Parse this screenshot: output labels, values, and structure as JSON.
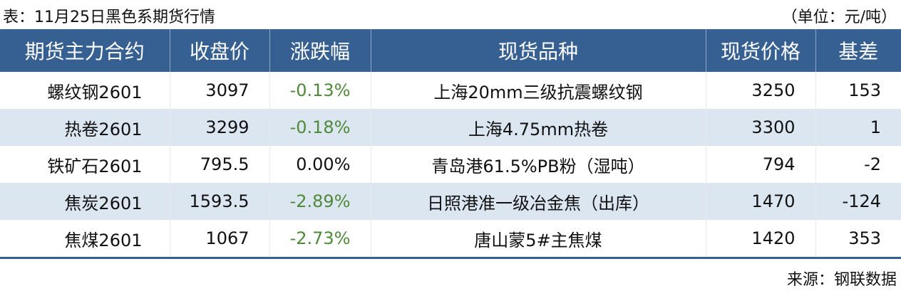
{
  "title": "表：11月25日黑色系期货行情",
  "unit": "（单位：元/吨）",
  "headers": [
    "期货主力合约",
    "收盘价",
    "涨跌幅",
    "现货品种",
    "现货价格",
    "基差"
  ],
  "rows": [
    {
      "contract": "螺纹钢2601",
      "close": "3097",
      "change": "-0.13%",
      "spot": "上海20mm三级抗震螺纹钢",
      "spot_price": "3250",
      "basis": "153"
    },
    {
      "contract": "热卷2601",
      "close": "3299",
      "change": "-0.18%",
      "spot": "上海4.75mm热卷",
      "spot_price": "3300",
      "basis": "1"
    },
    {
      "contract": "铁矿石2601",
      "close": "795.5",
      "change": "0.00%",
      "spot": "青岛港61.5%PB粉（湿吨）",
      "spot_price": "794",
      "basis": "-2"
    },
    {
      "contract": "焦炭2601",
      "close": "1593.5",
      "change": "-2.89%",
      "spot": "日照港准一级冶金焦（出库）",
      "spot_price": "1470",
      "basis": "-124"
    },
    {
      "contract": "焦煤2601",
      "close": "1067",
      "change": "-2.73%",
      "spot": "唐山蒙5#主焦煤",
      "spot_price": "1420",
      "basis": "353"
    }
  ],
  "source": "来源：钢联数据",
  "colors": {
    "header": "#376092",
    "alt_row": "#dce6f1",
    "negative": "#4f8a3a"
  }
}
